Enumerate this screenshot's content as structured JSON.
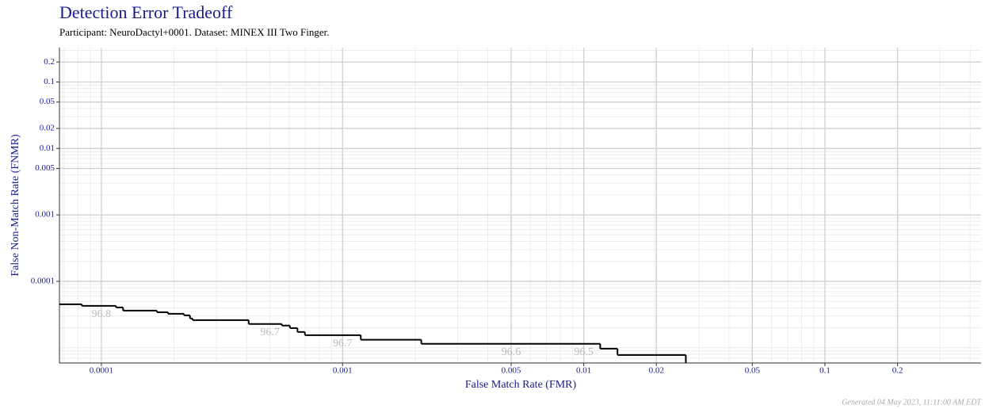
{
  "chart_data": {
    "type": "step",
    "title": "Detection Error Tradeoff",
    "subtitle": "Participant: NeuroDactyl+0001. Dataset: MINEX III Two Finger.",
    "x_label": "False Match Rate (FMR)",
    "y_label": "False Non-Match Rate (FNMR)",
    "footer": "Generated 04 May 2023, 11:11:00 AM EDT",
    "x_log": true,
    "y_log": true,
    "grid": true,
    "minor_grid": true,
    "color": "#000000",
    "xlim": [
      6.7e-05,
      0.444
    ],
    "ylim": [
      5.9e-06,
      0.33
    ],
    "xticks": [
      0.0001,
      0.001,
      0.005,
      0.01,
      0.02,
      0.05,
      0.1,
      0.2
    ],
    "yticks": [
      0.2,
      0.1,
      0.05,
      0.02,
      0.01,
      0.005,
      0.001,
      0.0001
    ],
    "x": [
      6.7e-05,
      8.3e-05,
      0.000115,
      0.000123,
      0.00017,
      0.000189,
      0.00022,
      0.000233,
      0.000239,
      0.000408,
      0.00056,
      0.000605,
      0.00065,
      0.000698,
      0.00119,
      0.00212,
      0.0117,
      0.0138,
      0.0265,
      0.0265
    ],
    "values": [
      4.52e-05,
      4.28e-05,
      4.05e-05,
      3.63e-05,
      3.43e-05,
      3.25e-05,
      3.08e-05,
      2.76e-05,
      2.61e-05,
      2.28e-05,
      2.16e-05,
      1.98e-05,
      1.73e-05,
      1.55e-05,
      1.32e-05,
      1.15e-05,
      9.7e-06,
      7.8e-06,
      7.8e-06,
      5.9e-06
    ],
    "annotations": [
      {
        "text": "96.8",
        "x": 0.0001
      },
      {
        "text": "96.7",
        "x": 0.0005
      },
      {
        "text": "96.7",
        "x": 0.001
      },
      {
        "text": "96.6",
        "x": 0.005
      },
      {
        "text": "96.5",
        "x": 0.01
      }
    ]
  }
}
